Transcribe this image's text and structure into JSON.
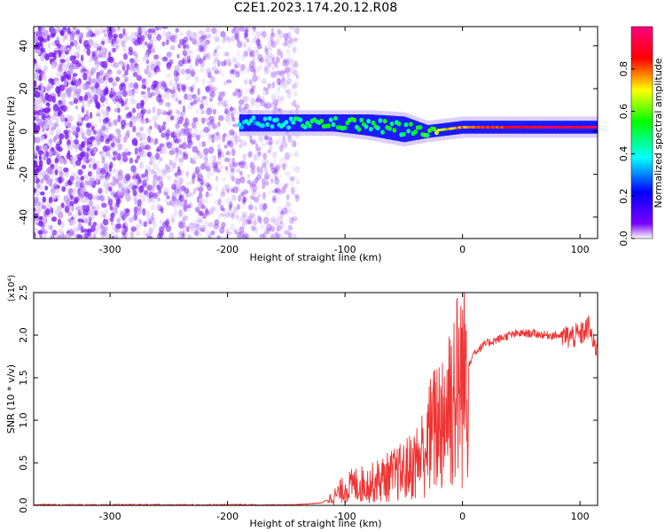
{
  "figure_title": "C2E1.2023.174.20.12.R08",
  "chart_data": [
    {
      "type": "heatmap",
      "title": "",
      "xlabel": "Height of straight line (km)",
      "ylabel": "Frequency (Hz)",
      "xlim": [
        -365,
        115
      ],
      "ylim": [
        -50,
        49
      ],
      "x_ticks": [
        -300,
        -200,
        -100,
        0,
        100
      ],
      "y_ticks": [
        -40,
        -20,
        0,
        20,
        40
      ],
      "colorbar": {
        "label": "Normalized spectral amplitude",
        "range": [
          0.0,
          1.0
        ],
        "ticks": [
          0.0,
          0.2,
          0.4,
          0.6,
          0.8
        ],
        "colormap": [
          "#ffffff",
          "#7a00ff",
          "#0000ff",
          "#00ffff",
          "#00ff00",
          "#ffff00",
          "#ff0000",
          "#ff0080"
        ]
      },
      "signal_band": [
        {
          "x": -190,
          "center": 4,
          "halfwidth": 4,
          "amplitude": 0.35
        },
        {
          "x": -150,
          "center": 4,
          "halfwidth": 4,
          "amplitude": 0.45
        },
        {
          "x": -110,
          "center": 4,
          "halfwidth": 4,
          "amplitude": 0.5
        },
        {
          "x": -80,
          "center": 3,
          "halfwidth": 5,
          "amplitude": 0.5
        },
        {
          "x": -50,
          "center": 1,
          "halfwidth": 6,
          "amplitude": 0.5
        },
        {
          "x": -30,
          "center": 0,
          "halfwidth": 3,
          "amplitude": 0.55
        },
        {
          "x": -15,
          "center": 1,
          "halfwidth": 3,
          "amplitude": 0.7
        },
        {
          "x": 0,
          "center": 2,
          "halfwidth": 3,
          "amplitude": 0.75
        },
        {
          "x": 30,
          "center": 2,
          "halfwidth": 3,
          "amplitude": 0.85
        },
        {
          "x": 60,
          "center": 2,
          "halfwidth": 3,
          "amplitude": 0.9
        },
        {
          "x": 90,
          "center": 2,
          "halfwidth": 3,
          "amplitude": 0.95
        },
        {
          "x": 115,
          "center": 2,
          "halfwidth": 3,
          "amplitude": 0.95
        }
      ],
      "noise_extent_x": [
        -365,
        -140
      ]
    },
    {
      "type": "line",
      "title": "",
      "xlabel": "Height of straight line (km)",
      "ylabel": "SNR (10 * v/v)",
      "y_multiplier": "(x10⁴)",
      "xlim": [
        -365,
        115
      ],
      "ylim": [
        0,
        2.5
      ],
      "x_ticks": [
        -300,
        -200,
        -100,
        0,
        100
      ],
      "y_ticks": [
        "0.0",
        "0.5",
        "1.0",
        "1.5",
        "2.0",
        "2.5"
      ],
      "series": [
        {
          "color": "#ee3333",
          "x": [
            -365,
            -300,
            -200,
            -140,
            -120,
            -110,
            -100,
            -90,
            -80,
            -70,
            -60,
            -50,
            -40,
            -35,
            -30,
            -25,
            -20,
            -15,
            -10,
            -5,
            0,
            5,
            10,
            20,
            30,
            40,
            50,
            60,
            70,
            80,
            90,
            100,
            108,
            112,
            115
          ],
          "y": [
            0.0,
            0.0,
            0.0,
            0.01,
            0.03,
            0.1,
            0.2,
            0.25,
            0.25,
            0.3,
            0.35,
            0.4,
            0.5,
            0.6,
            0.75,
            0.85,
            1.0,
            1.1,
            1.3,
            1.35,
            1.5,
            1.65,
            1.8,
            1.9,
            1.95,
            2.0,
            2.02,
            2.02,
            2.0,
            2.0,
            1.98,
            2.0,
            2.1,
            1.85,
            1.9
          ]
        }
      ]
    }
  ]
}
